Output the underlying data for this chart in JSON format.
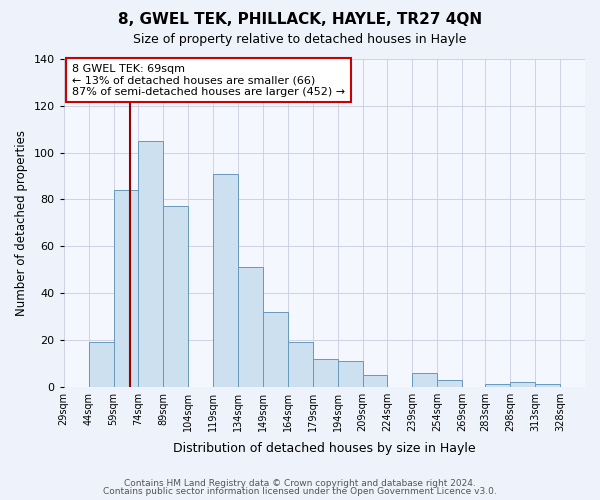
{
  "title": "8, GWEL TEK, PHILLACK, HAYLE, TR27 4QN",
  "subtitle": "Size of property relative to detached houses in Hayle",
  "xlabel": "Distribution of detached houses by size in Hayle",
  "ylabel": "Number of detached properties",
  "bar_values": [
    0,
    19,
    84,
    105,
    77,
    0,
    91,
    51,
    32,
    19,
    12,
    11,
    5,
    0,
    6,
    3,
    0,
    1,
    2,
    1,
    0
  ],
  "bin_labels": [
    "29sqm",
    "44sqm",
    "59sqm",
    "74sqm",
    "89sqm",
    "104sqm",
    "119sqm",
    "134sqm",
    "149sqm",
    "164sqm",
    "179sqm",
    "194sqm",
    "209sqm",
    "224sqm",
    "239sqm",
    "254sqm",
    "269sqm",
    "283sqm",
    "298sqm",
    "313sqm",
    "328sqm"
  ],
  "bin_edges": [
    29,
    44,
    59,
    74,
    89,
    104,
    119,
    134,
    149,
    164,
    179,
    194,
    209,
    224,
    239,
    254,
    269,
    283,
    298,
    313,
    328,
    343
  ],
  "bar_color": "#cce0f0",
  "bar_edge_color": "#6699bb",
  "property_line_x": 69,
  "property_line_color": "#990000",
  "ylim": [
    0,
    140
  ],
  "yticks": [
    0,
    20,
    40,
    60,
    80,
    100,
    120,
    140
  ],
  "annotation_text": "8 GWEL TEK: 69sqm\n← 13% of detached houses are smaller (66)\n87% of semi-detached houses are larger (452) →",
  "annotation_box_color": "#ffffff",
  "annotation_box_edge_color": "#cc0000",
  "footer_line1": "Contains HM Land Registry data © Crown copyright and database right 2024.",
  "footer_line2": "Contains public sector information licensed under the Open Government Licence v3.0.",
  "bg_color": "#eef2fa",
  "plot_bg_color": "#f5f7ff",
  "grid_color": "#c8cce0"
}
